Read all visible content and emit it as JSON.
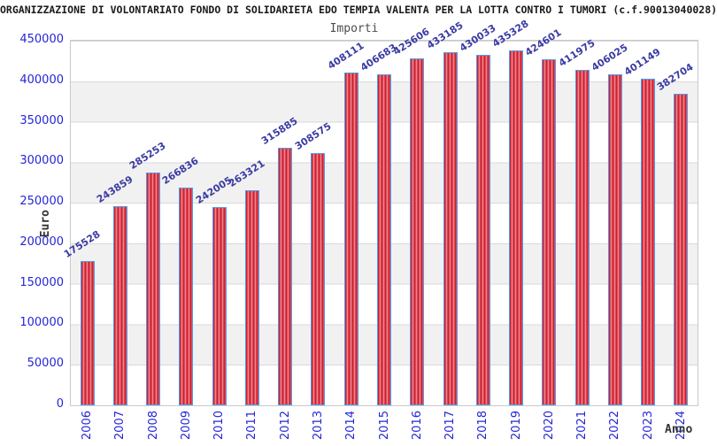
{
  "header": {
    "title": "ORGANIZZAZIONE DI VOLONTARIATO FONDO DI SOLIDARIETA EDO TEMPIA VALENTA PER LA LOTTA CONTRO I TUMORI (c.f.90013040028)",
    "subtitle": "Importi"
  },
  "chart_data": {
    "type": "bar",
    "title": "Importi",
    "xlabel": "Anno",
    "ylabel": "Euro",
    "ylim": [
      0,
      450000
    ],
    "ytick_step": 50000,
    "yticks": [
      450000,
      400000,
      350000,
      300000,
      250000,
      200000,
      150000,
      100000,
      50000,
      0
    ],
    "categories": [
      "2006",
      "2007",
      "2008",
      "2009",
      "2010",
      "2011",
      "2012",
      "2013",
      "2014",
      "2015",
      "2016",
      "2017",
      "2018",
      "2019",
      "2020",
      "2021",
      "2022",
      "2023",
      "2024"
    ],
    "values": [
      175528,
      243859,
      285253,
      266836,
      242005,
      263321,
      315885,
      308575,
      408111,
      406683,
      425606,
      433185,
      430033,
      435328,
      424601,
      411975,
      406025,
      401149,
      382704
    ],
    "grid": "horizontal-gridlines-with-alternating-bands",
    "legend": "none",
    "value_label_rotation_deg": -33,
    "x_label_rotation_deg": -90,
    "colors": {
      "bar_fill": "#d02030",
      "bar_stripe": "#ef98a0",
      "bar_border": "#4f9be8",
      "axis_text": "#2525d6",
      "value_text": "#3b3ba4",
      "band_gray": "#f1f1f1",
      "gridline": "#d9d9d9",
      "plot_border": "#c9c9c9",
      "title_text": "#1a1a1a",
      "subtitle_text": "#4d4d4d",
      "axis_title_text": "#333333"
    }
  }
}
